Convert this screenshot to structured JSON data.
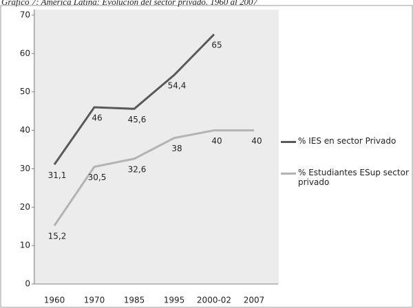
{
  "chart_data": {
    "type": "line",
    "title": "Gráfico 7: América Latina: Evolución del sector privado. 1960 al 2007",
    "categories": [
      "1960",
      "1970",
      "1985",
      "1995",
      "2000-02",
      "2007"
    ],
    "series": [
      {
        "name": "% IES en sector Privado",
        "color": "#595959",
        "values": [
          31.1,
          46,
          45.6,
          54.4,
          65,
          null
        ],
        "value_labels": [
          "31,1",
          "46",
          "45,6",
          "54,4",
          "65",
          null
        ]
      },
      {
        "name": "% Estudiantes ESup sector privado",
        "color": "#b3b3b3",
        "values": [
          15.2,
          30.5,
          32.6,
          38,
          40,
          40
        ],
        "value_labels": [
          "15,2",
          "30,5",
          "32,6",
          "38",
          "40",
          "40"
        ]
      }
    ],
    "ylim": [
      0,
      70
    ],
    "yticks": [
      0,
      10,
      20,
      30,
      40,
      50,
      60,
      70
    ],
    "legend": "right"
  }
}
